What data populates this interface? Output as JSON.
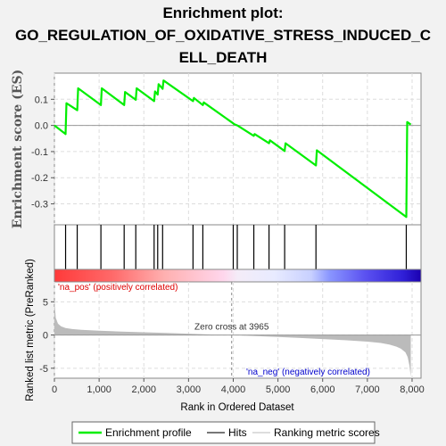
{
  "chart_data": {
    "type": "line",
    "title_lines": [
      "Enrichment plot:",
      "GO_REGULATION_OF_OXIDATIVE_STRESS_INDUCED_C",
      "ELL_DEATH"
    ],
    "es_panel": {
      "ylabel": "Enrichment score (ES)",
      "ylim": [
        -0.38,
        0.2
      ],
      "yticks": [
        0.1,
        0.0,
        -0.1,
        -0.2,
        -0.3
      ],
      "ytick_labels": [
        "0.1",
        "0.0",
        "-0.1",
        "-0.2",
        "-0.3"
      ],
      "grid": true,
      "series": [
        {
          "name": "Enrichment profile",
          "color": "#00ee00",
          "x": [
            0,
            250,
            270,
            510,
            530,
            1040,
            1060,
            1560,
            1580,
            1820,
            1840,
            2230,
            2250,
            2310,
            2330,
            2420,
            2440,
            3100,
            3120,
            3320,
            3340,
            4000,
            4020,
            4090,
            4110,
            4460,
            4480,
            4800,
            4820,
            5150,
            5170,
            5850,
            5870,
            7870,
            7890,
            7970
          ],
          "y": [
            0.0,
            -0.033,
            0.085,
            0.058,
            0.142,
            0.078,
            0.142,
            0.078,
            0.128,
            0.098,
            0.142,
            0.093,
            0.13,
            0.118,
            0.158,
            0.14,
            0.172,
            0.093,
            0.105,
            0.078,
            0.088,
            0.008,
            0.005,
            0.0,
            -0.002,
            -0.04,
            -0.033,
            -0.068,
            -0.057,
            -0.098,
            -0.068,
            -0.153,
            -0.095,
            -0.35,
            0.013,
            0.003
          ]
        }
      ]
    },
    "hits": [
      250,
      510,
      1040,
      1560,
      1820,
      2230,
      2310,
      2420,
      3100,
      3320,
      4000,
      4090,
      4460,
      4800,
      5150,
      5850,
      7870
    ],
    "metric_panel": {
      "ylabel": "Ranked list metric (PreRanked)",
      "xlabel": "Rank in Ordered Dataset",
      "xlim": [
        0,
        8200
      ],
      "xticks": [
        0,
        1000,
        2000,
        3000,
        4000,
        5000,
        6000,
        7000,
        8000
      ],
      "xtick_labels": [
        "0",
        "1,000",
        "2,000",
        "3,000",
        "4,000",
        "5,000",
        "6,000",
        "7,000",
        "8,000"
      ],
      "ylim": [
        -6.5,
        8
      ],
      "yticks": [
        5,
        0,
        -5
      ],
      "ytick_labels": [
        "5",
        "0",
        "-5"
      ],
      "profile_x": [
        0,
        30,
        80,
        150,
        250,
        400,
        600,
        1000,
        1500,
        2000,
        2500,
        3000,
        3500,
        3965,
        4500,
        5000,
        5500,
        6000,
        6500,
        7000,
        7300,
        7500,
        7650,
        7750,
        7850,
        7900,
        7940,
        7970
      ],
      "profile_y": [
        5.2,
        2.6,
        1.7,
        1.3,
        1.05,
        0.9,
        0.78,
        0.65,
        0.52,
        0.42,
        0.32,
        0.2,
        0.08,
        0.0,
        -0.15,
        -0.3,
        -0.45,
        -0.6,
        -0.78,
        -1.0,
        -1.2,
        -1.45,
        -1.75,
        -2.05,
        -2.6,
        -3.3,
        -4.6,
        -6.3
      ],
      "zero_cross_label": "Zero cross at 3965",
      "zero_cross_x": 3965,
      "pos_label": "'na_pos' (positively correlated)",
      "neg_label": "'na_neg' (negatively correlated)"
    },
    "legend": {
      "placement": "bottom",
      "items": [
        "Enrichment profile",
        "Hits",
        "Ranking metric scores"
      ]
    },
    "colors": {
      "profile": "#00ee00",
      "hit": "#000000",
      "metric": "#bbbbbb",
      "pos_label": "#dd0000",
      "neg_label": "#0000cc",
      "zero_line": "#888888",
      "grid": "#dddddd"
    }
  }
}
